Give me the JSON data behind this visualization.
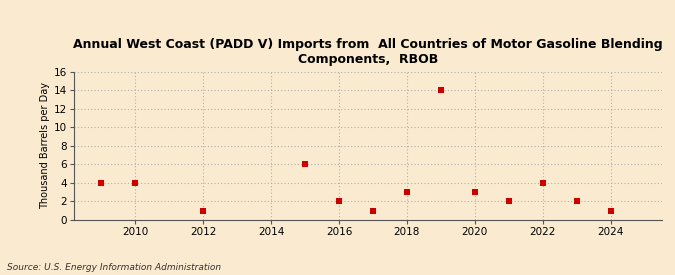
{
  "title": "Annual West Coast (PADD V) Imports from  All Countries of Motor Gasoline Blending\nComponents,  RBOB",
  "ylabel": "Thousand Barrels per Day",
  "source": "Source: U.S. Energy Information Administration",
  "background_color": "#faebd0",
  "grid_color": "#b0b0b0",
  "point_color": "#cc0000",
  "spine_color": "#555555",
  "xlim": [
    2008.2,
    2025.5
  ],
  "ylim": [
    0,
    16
  ],
  "yticks": [
    0,
    2,
    4,
    6,
    8,
    10,
    12,
    14,
    16
  ],
  "xticks": [
    2010,
    2012,
    2014,
    2016,
    2018,
    2020,
    2022,
    2024
  ],
  "data_x": [
    2009,
    2010,
    2012,
    2015,
    2016,
    2017,
    2018,
    2019,
    2020,
    2021,
    2022,
    2023,
    2024
  ],
  "data_y": [
    4,
    4,
    1,
    6,
    2,
    1,
    3,
    14,
    3,
    2,
    4,
    2,
    1
  ]
}
